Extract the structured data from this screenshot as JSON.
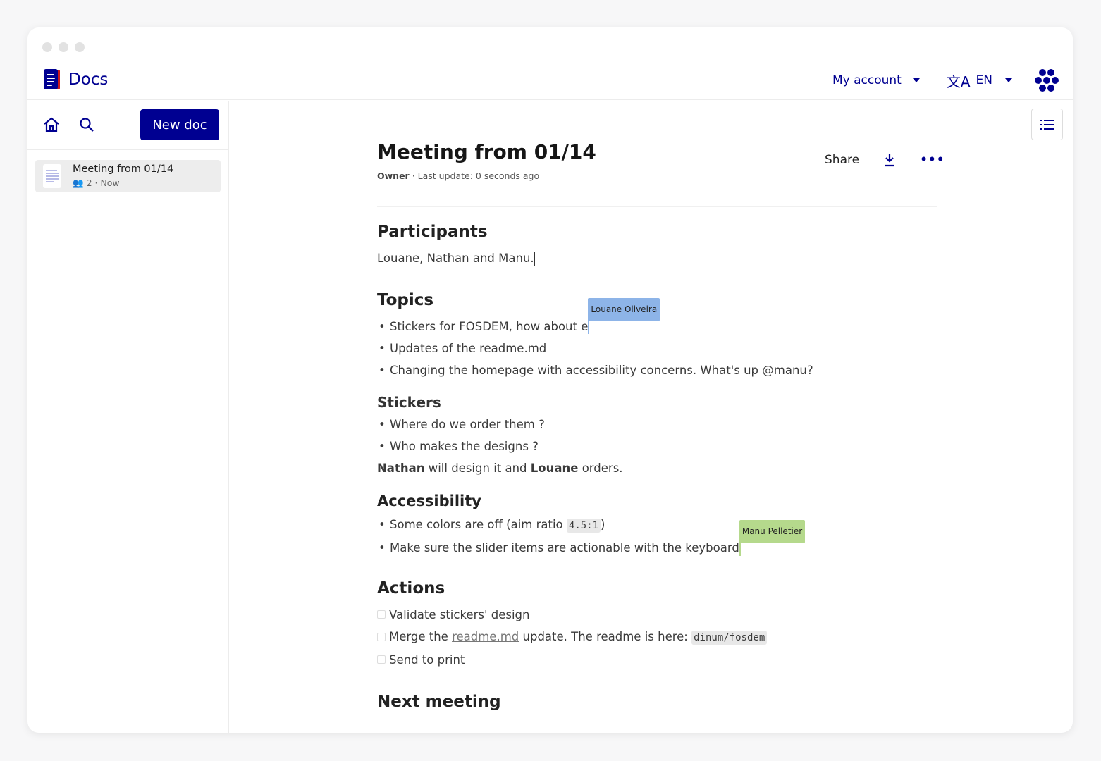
{
  "app": {
    "name": "Docs"
  },
  "header": {
    "account": "My account",
    "language": "EN"
  },
  "sidebar": {
    "new_doc": "New doc",
    "docs": [
      {
        "title": "Meeting from 01/14",
        "participants": "2",
        "time": "Now"
      }
    ]
  },
  "doc": {
    "title": "Meeting from 01/14",
    "role": "Owner",
    "last_update": "· Last update: 0 seconds ago",
    "share": "Share"
  },
  "content": {
    "participants_h": "Participants",
    "participants_p": "Louane, Nathan and Manu.",
    "topics_h": "Topics",
    "topics": [
      "Stickers for FOSDEM, how about e",
      "Updates of the readme.md",
      "Changing the homepage with accessibility concerns. What's up @manu?"
    ],
    "cursor1": {
      "name": "Louane Oliveira",
      "color": "#8db4e8"
    },
    "stickers_h": "Stickers",
    "stickers": [
      "Where do we order them ?",
      "Who makes the designs ?"
    ],
    "st_p": {
      "a": "Nathan",
      "b": " will design it and ",
      "c": "Louane",
      "d": " orders."
    },
    "access_h": "Accessibility",
    "access1_pre": "Some colors are off (aim ratio ",
    "access1_code": "4.5:1",
    "access1_post": ")",
    "access2": "Make sure the slider items are actionable with the keyboard",
    "cursor2": {
      "name": "Manu Pelletier",
      "color": "#b5d98c"
    },
    "actions_h": "Actions",
    "action1": "Validate stickers' design",
    "action2_pre": "Merge the ",
    "action2_link": "readme.md",
    "action2_mid": " update. The readme is here: ",
    "action2_code": "dinum/fosdem",
    "action3": "Send to print",
    "next_h": "Next meeting"
  },
  "colors": {
    "brand": "#000091"
  }
}
